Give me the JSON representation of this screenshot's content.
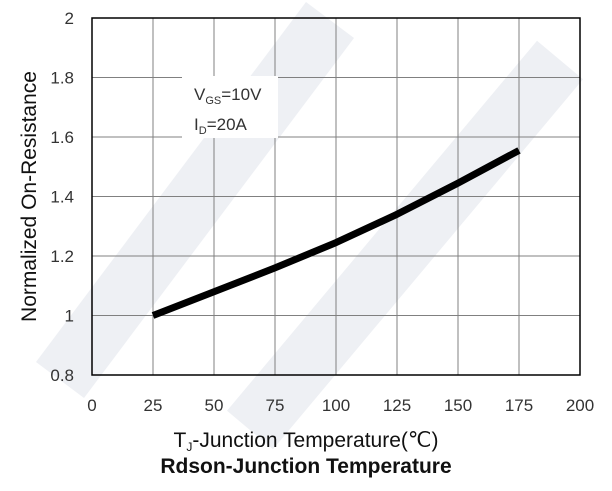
{
  "chart_data": {
    "type": "line",
    "title": "Rdson-Junction Temperature",
    "xlabel": {
      "main": "T",
      "sub": "J",
      "rest": "-Junction Temperature(℃)"
    },
    "ylabel": "Normalized On-Resistance",
    "xlim": [
      0,
      200
    ],
    "ylim": [
      0.8,
      2
    ],
    "x_ticks": [
      "0",
      "25",
      "50",
      "75",
      "100",
      "125",
      "150",
      "175",
      "200"
    ],
    "y_ticks": [
      "0.8",
      "1",
      "1.2",
      "1.4",
      "1.6",
      "1.8",
      "2"
    ],
    "grid": true,
    "series": [
      {
        "x": [
          25,
          50,
          75,
          100,
          125,
          150,
          175
        ],
        "y": [
          1.0,
          1.08,
          1.16,
          1.245,
          1.34,
          1.445,
          1.555
        ]
      }
    ],
    "annotations": [
      {
        "main": "V",
        "sub": "GS",
        "rest": "=10V"
      },
      {
        "main": "I",
        "sub": "D",
        "rest": "=20A"
      }
    ],
    "colors": {
      "line": "#000000",
      "grid": "#808080",
      "axis": "#000000"
    }
  }
}
